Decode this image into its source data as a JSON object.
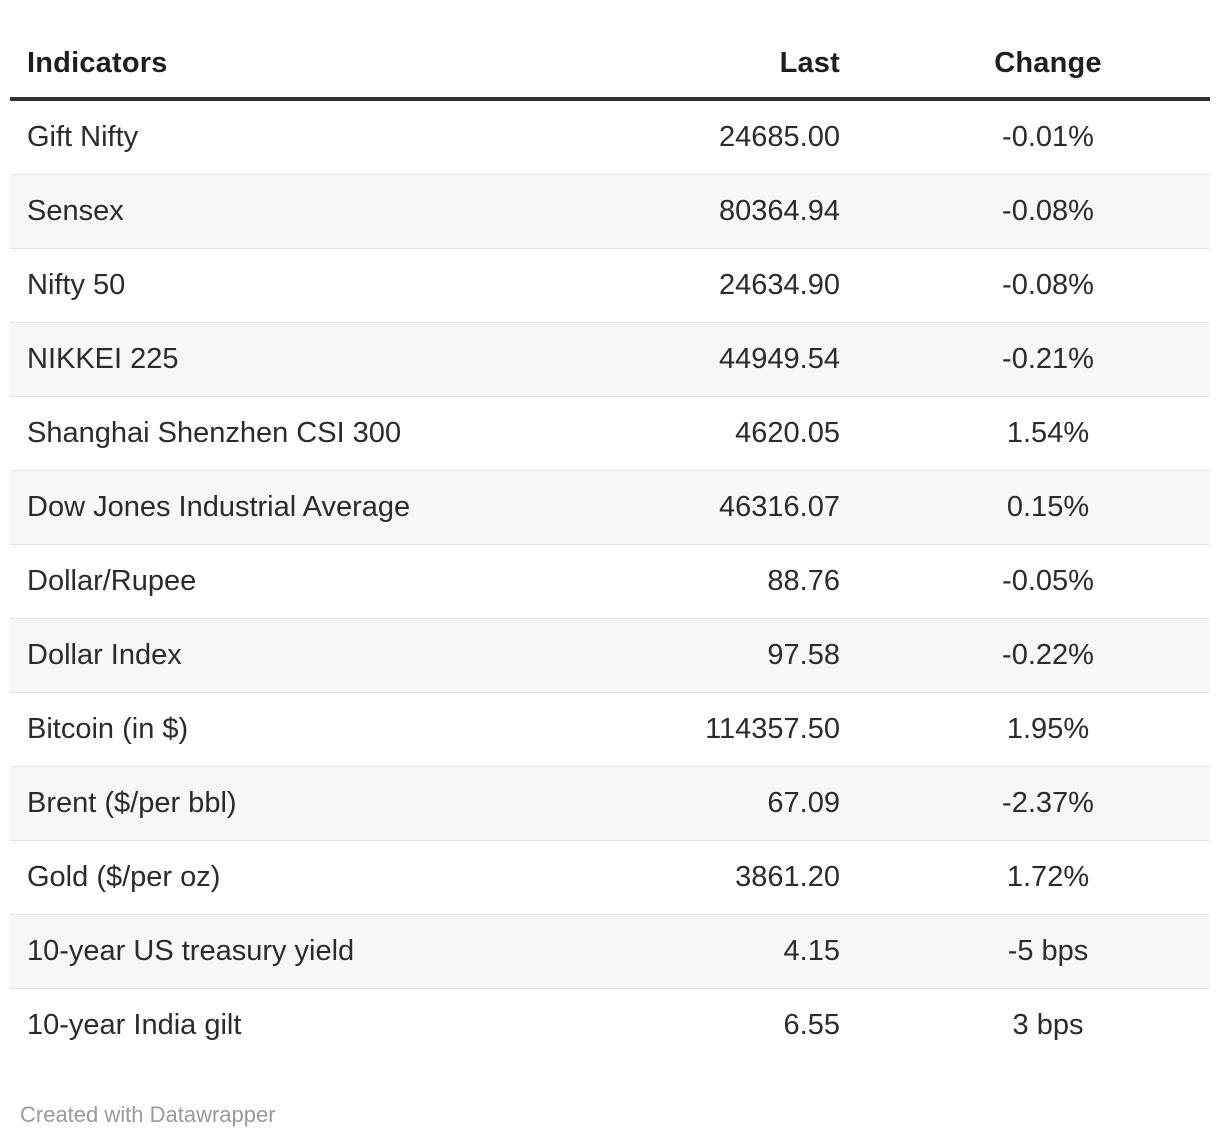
{
  "chart_data": {
    "type": "table",
    "columns": [
      {
        "key": "indicator",
        "label": "Indicators",
        "align": "left"
      },
      {
        "key": "last",
        "label": "Last",
        "align": "right"
      },
      {
        "key": "change",
        "label": "Change",
        "align": "center"
      }
    ],
    "rows": [
      {
        "indicator": "Gift Nifty",
        "last": "24685.00",
        "change": "-0.01%"
      },
      {
        "indicator": "Sensex",
        "last": "80364.94",
        "change": "-0.08%"
      },
      {
        "indicator": "Nifty 50",
        "last": "24634.90",
        "change": "-0.08%"
      },
      {
        "indicator": "NIKKEI 225",
        "last": "44949.54",
        "change": "-0.21%"
      },
      {
        "indicator": "Shanghai Shenzhen CSI 300",
        "last": "4620.05",
        "change": "1.54%"
      },
      {
        "indicator": "Dow Jones Industrial Average",
        "last": "46316.07",
        "change": "0.15%"
      },
      {
        "indicator": "Dollar/Rupee",
        "last": "88.76",
        "change": "-0.05%"
      },
      {
        "indicator": "Dollar Index",
        "last": "97.58",
        "change": "-0.22%"
      },
      {
        "indicator": "Bitcoin (in $)",
        "last": "114357.50",
        "change": "1.95%"
      },
      {
        "indicator": "Brent ($/per bbl)",
        "last": "67.09",
        "change": "-2.37%"
      },
      {
        "indicator": "Gold ($/per oz)",
        "last": "3861.20",
        "change": "1.72%"
      },
      {
        "indicator": "10-year US treasury yield",
        "last": "4.15",
        "change": "-5 bps"
      },
      {
        "indicator": "10-year India gilt",
        "last": "6.55",
        "change": "3 bps"
      }
    ],
    "layout_hints": {
      "striped_rows": true,
      "stripe_on": "even",
      "header_rule": true
    }
  },
  "footer": {
    "attribution": "Created with Datawrapper"
  },
  "colors": {
    "header_rule": "#333333",
    "row_divider": "#e3e3e3",
    "stripe_background": "#f7f7f7",
    "text": "#2b2b2b",
    "footer_text": "#9a9a9a"
  }
}
